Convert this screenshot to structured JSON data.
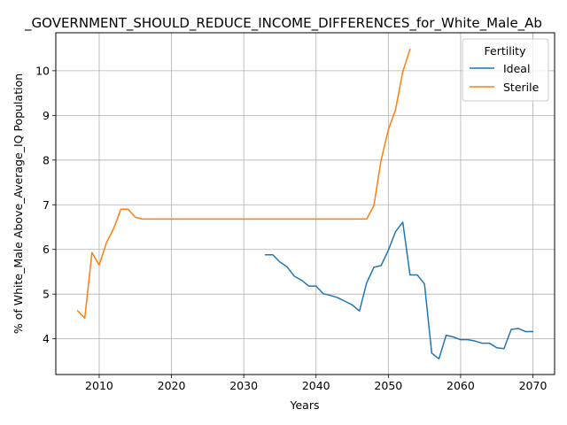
{
  "chart_data": {
    "type": "line",
    "title": "_GOVERNMENT_SHOULD_REDUCE_INCOME_DIFFERENCES_for_White_Male_Ab",
    "xlabel": "Years",
    "ylabel": "% of White_Male Above_Average_IQ Population",
    "xlim": [
      2004,
      2073
    ],
    "ylim": [
      3.2,
      10.85
    ],
    "xticks": [
      2010,
      2020,
      2030,
      2040,
      2050,
      2060,
      2070
    ],
    "yticks": [
      4,
      5,
      6,
      7,
      8,
      9,
      10
    ],
    "grid": true,
    "legend": {
      "title": "Fertility",
      "placement": "top-right"
    },
    "series": [
      {
        "name": "Ideal",
        "color": "#1f77b4",
        "x": [
          2033,
          2034,
          2035,
          2036,
          2037,
          2038,
          2039,
          2040,
          2041,
          2042,
          2043,
          2044,
          2045,
          2046,
          2047,
          2048,
          2049,
          2050,
          2051,
          2052,
          2053,
          2054,
          2055,
          2056,
          2057,
          2058,
          2059,
          2060,
          2061,
          2062,
          2063,
          2064,
          2065,
          2066,
          2067,
          2068,
          2069,
          2070
        ],
        "y": [
          5.88,
          5.88,
          5.72,
          5.61,
          5.4,
          5.31,
          5.18,
          5.18,
          5.01,
          4.97,
          4.92,
          4.84,
          4.76,
          4.62,
          5.25,
          5.6,
          5.64,
          5.98,
          6.4,
          6.61,
          5.43,
          5.43,
          5.23,
          3.68,
          3.55,
          4.08,
          4.04,
          3.98,
          3.98,
          3.95,
          3.9,
          3.9,
          3.8,
          3.78,
          4.21,
          4.23,
          4.16,
          4.16
        ]
      },
      {
        "name": "Sterile",
        "color": "#ff7f0e",
        "x": [
          2007,
          2008,
          2009,
          2010,
          2011,
          2012,
          2013,
          2014,
          2015,
          2016,
          2017,
          2018,
          2019,
          2020,
          2021,
          2022,
          2023,
          2024,
          2025,
          2026,
          2027,
          2028,
          2029,
          2030,
          2031,
          2032,
          2033,
          2034,
          2035,
          2036,
          2037,
          2038,
          2039,
          2040,
          2041,
          2042,
          2043,
          2044,
          2045,
          2046,
          2047,
          2048,
          2049,
          2050,
          2051,
          2052,
          2053
        ],
        "y": [
          4.63,
          4.46,
          5.93,
          5.65,
          6.15,
          6.47,
          6.9,
          6.9,
          6.72,
          6.68,
          6.68,
          6.68,
          6.68,
          6.68,
          6.68,
          6.68,
          6.68,
          6.68,
          6.68,
          6.68,
          6.68,
          6.68,
          6.68,
          6.68,
          6.68,
          6.68,
          6.68,
          6.68,
          6.68,
          6.68,
          6.68,
          6.68,
          6.68,
          6.68,
          6.68,
          6.68,
          6.68,
          6.68,
          6.68,
          6.68,
          6.68,
          6.98,
          8.0,
          8.68,
          9.13,
          9.98,
          10.48
        ]
      }
    ]
  }
}
